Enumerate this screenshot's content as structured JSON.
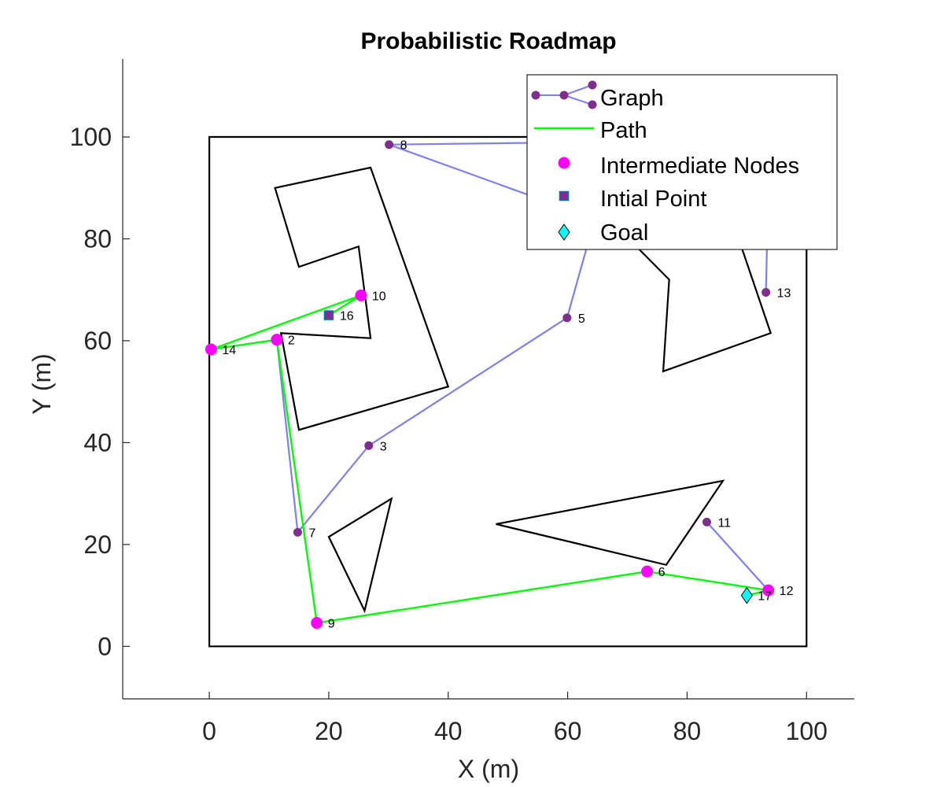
{
  "chart_data": {
    "type": "scatter",
    "title": "Probabilistic Roadmap",
    "xlabel": "X (m)",
    "ylabel": "Y (m)",
    "xlim": [
      -14.5,
      108
    ],
    "ylim": [
      -10.3,
      115.3
    ],
    "xticks": [
      0,
      20,
      40,
      60,
      80,
      100
    ],
    "yticks": [
      0,
      20,
      40,
      60,
      80,
      100
    ],
    "grid": false,
    "legend_position": "top-right",
    "colors": {
      "graph_edge": "#7f7ff0",
      "graph_node": "#7e2f8e",
      "path": "#00ff00",
      "intermediate": "#ff00ff",
      "initial_fill": "#7e2f8e",
      "initial_edge": "#0072bd",
      "goal": "#00ffff",
      "obstacle": "#000000"
    },
    "boundary": [
      [
        0,
        0
      ],
      [
        100,
        0
      ],
      [
        100,
        100
      ],
      [
        0,
        100
      ]
    ],
    "obstacles": [
      [
        [
          11,
          90
        ],
        [
          27,
          94
        ],
        [
          40,
          51
        ],
        [
          15,
          42.5
        ],
        [
          12,
          61.5
        ],
        [
          27,
          60.5
        ],
        [
          25,
          78.5
        ],
        [
          15,
          74.5
        ]
      ],
      [
        [
          20,
          21.5
        ],
        [
          30.5,
          29
        ],
        [
          26,
          7
        ]
      ],
      [
        [
          48,
          24
        ],
        [
          86,
          32.5
        ],
        [
          76.5,
          16
        ]
      ],
      [
        [
          76,
          54
        ],
        [
          94,
          61.5
        ],
        [
          84,
          96
        ],
        [
          62,
          96
        ],
        [
          66,
          85
        ],
        [
          77,
          72
        ]
      ]
    ],
    "nodes": [
      {
        "id": "2",
        "x": 11.3,
        "y": 60.2,
        "kind": "intermediate"
      },
      {
        "id": "3",
        "x": 26.7,
        "y": 39.4,
        "kind": "graph"
      },
      {
        "id": "5",
        "x": 59.9,
        "y": 64.5,
        "kind": "graph"
      },
      {
        "id": "6",
        "x": 73.3,
        "y": 14.7,
        "kind": "intermediate"
      },
      {
        "id": "7",
        "x": 14.8,
        "y": 22.4,
        "kind": "graph"
      },
      {
        "id": "8",
        "x": 30.1,
        "y": 98.5,
        "kind": "graph"
      },
      {
        "id": "9",
        "x": 18.0,
        "y": 4.6,
        "kind": "intermediate"
      },
      {
        "id": "10",
        "x": 25.4,
        "y": 68.9,
        "kind": "intermediate"
      },
      {
        "id": "11",
        "x": 83.3,
        "y": 24.4,
        "kind": "graph"
      },
      {
        "id": "12",
        "x": 93.6,
        "y": 11.0,
        "kind": "intermediate"
      },
      {
        "id": "13",
        "x": 93.2,
        "y": 69.5,
        "kind": "graph"
      },
      {
        "id": "14",
        "x": 0.3,
        "y": 58.3,
        "kind": "intermediate"
      },
      {
        "id": "16",
        "x": 20.0,
        "y": 65.0,
        "kind": "initial"
      },
      {
        "id": "17",
        "x": 90.0,
        "y": 10.0,
        "kind": "goal"
      }
    ],
    "graph_edges": [
      [
        [
          30.1,
          98.5
        ],
        [
          65,
          99
        ]
      ],
      [
        [
          30.1,
          98.5
        ],
        [
          62,
          85
        ]
      ],
      [
        [
          62,
          85
        ],
        [
          66,
          90
        ]
      ],
      [
        [
          66,
          90
        ],
        [
          59.9,
          64.5
        ]
      ],
      [
        [
          59.9,
          64.5
        ],
        [
          26.7,
          39.4
        ]
      ],
      [
        [
          26.7,
          39.4
        ],
        [
          14.8,
          22.4
        ]
      ],
      [
        [
          14.8,
          22.4
        ],
        [
          11.3,
          60.2
        ]
      ],
      [
        [
          83.3,
          24.4
        ],
        [
          93.6,
          11.0
        ]
      ],
      [
        [
          93.2,
          69.5
        ],
        [
          93.5,
          85
        ]
      ],
      [
        [
          20.0,
          65.0
        ],
        [
          25.4,
          68.9
        ]
      ]
    ],
    "path": [
      [
        20.0,
        65.0
      ],
      [
        25.4,
        68.9
      ],
      [
        0.3,
        58.3
      ],
      [
        11.3,
        60.2
      ],
      [
        18.0,
        4.6
      ],
      [
        73.3,
        14.7
      ],
      [
        93.6,
        11.0
      ],
      [
        90.0,
        10.0
      ]
    ],
    "legend": [
      "Graph",
      "Path",
      "Intermediate Nodes",
      "Intial Point",
      "Goal"
    ]
  }
}
